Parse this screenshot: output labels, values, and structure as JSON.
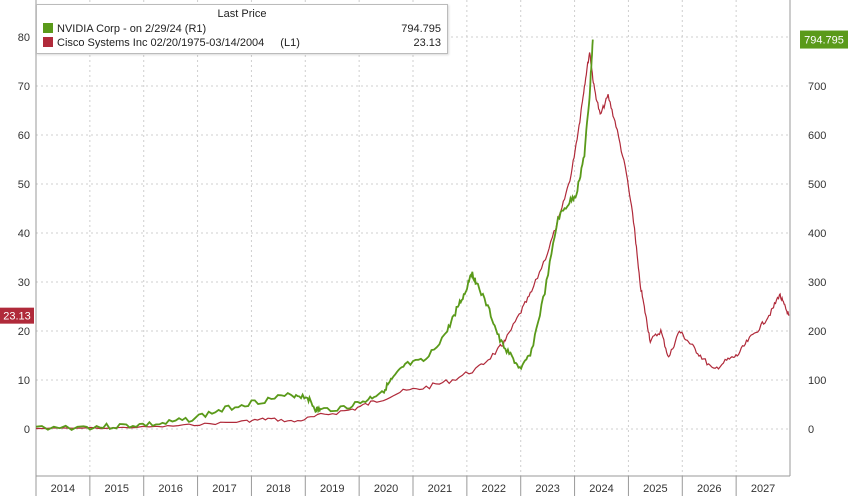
{
  "colors": {
    "nvidia": "#5a9a1a",
    "cisco": "#b02a3a",
    "grid": "#cfcfcf",
    "axis": "#999999"
  },
  "legend": {
    "title": "Last Price",
    "nvidia_label": "NVIDIA Corp -   on 2/29/24  (R1)",
    "nvidia_value": "794.795",
    "cisco_label": "Cisco Systems Inc 02/20/1975-03/14/2004",
    "cisco_axis_tag": "(L1)",
    "cisco_value": "23.13"
  },
  "badges": {
    "left": "23.13",
    "right": "794.795"
  },
  "chart_data": {
    "type": "line",
    "categories": [
      "2014",
      "2015",
      "2016",
      "2017",
      "2018",
      "2019",
      "2020",
      "2021",
      "2022",
      "2023",
      "2024",
      "2025",
      "2026",
      "2027"
    ],
    "left_axis": {
      "ticks": [
        "0",
        "10",
        "20",
        "30",
        "40",
        "50",
        "60",
        "70",
        "80"
      ],
      "ylim": [
        0,
        80
      ]
    },
    "right_axis": {
      "ticks": [
        "0",
        "100",
        "200",
        "300",
        "400",
        "500",
        "600",
        "700"
      ],
      "ylim": [
        0,
        800
      ]
    },
    "x_range": [
      2013.6,
      2027.9
    ],
    "grid": true,
    "legend_position": "top-left",
    "series": [
      {
        "name": "NVIDIA Corp",
        "axis": "right",
        "points": [
          [
            2013.6,
            3
          ],
          [
            2014.5,
            4
          ],
          [
            2015.0,
            5
          ],
          [
            2015.5,
            8
          ],
          [
            2016.0,
            10
          ],
          [
            2016.5,
            20
          ],
          [
            2017.0,
            35
          ],
          [
            2017.5,
            50
          ],
          [
            2018.0,
            60
          ],
          [
            2018.5,
            70
          ],
          [
            2018.75,
            65
          ],
          [
            2018.9,
            40
          ],
          [
            2019.0,
            38
          ],
          [
            2019.5,
            45
          ],
          [
            2019.9,
            60
          ],
          [
            2020.2,
            80
          ],
          [
            2020.35,
            100
          ],
          [
            2020.6,
            130
          ],
          [
            2021.0,
            140
          ],
          [
            2021.4,
            200
          ],
          [
            2021.6,
            250
          ],
          [
            2021.75,
            280
          ],
          [
            2021.85,
            320
          ],
          [
            2021.95,
            300
          ],
          [
            2022.2,
            240
          ],
          [
            2022.4,
            180
          ],
          [
            2022.6,
            150
          ],
          [
            2022.8,
            120
          ],
          [
            2023.0,
            160
          ],
          [
            2023.25,
            280
          ],
          [
            2023.5,
            430
          ],
          [
            2023.7,
            460
          ],
          [
            2023.85,
            480
          ],
          [
            2024.0,
            560
          ],
          [
            2024.1,
            680
          ],
          [
            2024.16,
            794.795
          ]
        ]
      },
      {
        "name": "Cisco Systems Inc 02/20/1975-03/14/2004",
        "axis": "left",
        "points": [
          [
            2013.6,
            0.1
          ],
          [
            2015.0,
            0.2
          ],
          [
            2016.0,
            0.5
          ],
          [
            2016.8,
            1.0
          ],
          [
            2017.6,
            1.6
          ],
          [
            2018.0,
            2.1
          ],
          [
            2018.5,
            1.5
          ],
          [
            2019.0,
            2.8
          ],
          [
            2019.6,
            4.0
          ],
          [
            2020.0,
            5.5
          ],
          [
            2020.5,
            7.5
          ],
          [
            2021.0,
            8.5
          ],
          [
            2021.5,
            10.0
          ],
          [
            2022.0,
            12.5
          ],
          [
            2022.35,
            16.0
          ],
          [
            2022.5,
            18.0
          ],
          [
            2022.8,
            24.0
          ],
          [
            2023.0,
            28.0
          ],
          [
            2023.3,
            36.0
          ],
          [
            2023.55,
            44.0
          ],
          [
            2023.75,
            52.0
          ],
          [
            2023.9,
            62.0
          ],
          [
            2024.0,
            70.0
          ],
          [
            2024.1,
            77.0
          ],
          [
            2024.18,
            70.0
          ],
          [
            2024.3,
            64.0
          ],
          [
            2024.45,
            68.0
          ],
          [
            2024.6,
            62.0
          ],
          [
            2024.8,
            52.0
          ],
          [
            2024.95,
            41.0
          ],
          [
            2025.05,
            30.0
          ],
          [
            2025.15,
            24.0
          ],
          [
            2025.25,
            18.0
          ],
          [
            2025.45,
            20.0
          ],
          [
            2025.6,
            14.5
          ],
          [
            2025.8,
            20.0
          ],
          [
            2026.0,
            17.5
          ],
          [
            2026.2,
            15.0
          ],
          [
            2026.45,
            12.0
          ],
          [
            2026.7,
            14.0
          ],
          [
            2026.9,
            15.0
          ],
          [
            2027.1,
            18.0
          ],
          [
            2027.35,
            21.0
          ],
          [
            2027.55,
            24.0
          ],
          [
            2027.7,
            27.5
          ],
          [
            2027.8,
            25.0
          ],
          [
            2027.88,
            23.13
          ]
        ]
      }
    ]
  }
}
